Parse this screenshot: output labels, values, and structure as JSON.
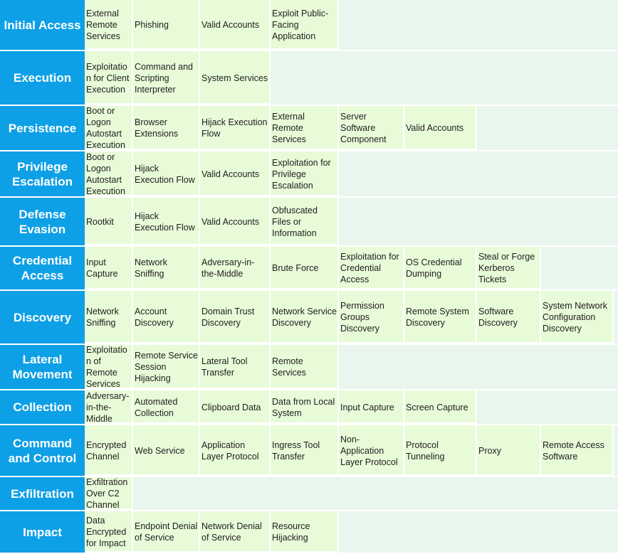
{
  "matrix": {
    "rows": [
      {
        "tactic": "Initial Access",
        "techniques": [
          "External Remote Services",
          "Phishing",
          "Valid Accounts",
          "Exploit Public-Facing Application"
        ]
      },
      {
        "tactic": "Execution",
        "techniques": [
          "Exploitation for Client Execution",
          "Command and Scripting Interpreter",
          "System Services"
        ]
      },
      {
        "tactic": "Persistence",
        "techniques": [
          "Boot or Logon Autostart Execution",
          "Browser Extensions",
          "Hijack Execution Flow",
          "External Remote Services",
          "Server Software Component",
          "Valid Accounts"
        ]
      },
      {
        "tactic": "Privilege Escalation",
        "techniques": [
          "Boot or Logon Autostart Execution",
          "Hijack Execution Flow",
          "Valid Accounts",
          "Exploitation for Privilege Escalation"
        ]
      },
      {
        "tactic": "Defense Evasion",
        "techniques": [
          "Rootkit",
          "Hijack Execution Flow",
          "Valid Accounts",
          "Obfuscated Files or Information"
        ]
      },
      {
        "tactic": "Credential Access",
        "techniques": [
          "Input Capture",
          "Network Sniffing",
          "Adversary-in-the-Middle",
          "Brute Force",
          "Exploitation for Credential Access",
          "OS Credential Dumping",
          "Steal or Forge Kerberos Tickets"
        ]
      },
      {
        "tactic": "Discovery",
        "techniques": [
          "Network Sniffing",
          "Account Discovery",
          "Domain Trust Discovery",
          "Network Service Discovery",
          "Permission Groups Discovery",
          "Remote System Discovery",
          "Software Discovery",
          "System Network Configuration Discovery"
        ]
      },
      {
        "tactic": "Lateral Movement",
        "techniques": [
          "Exploitation of Remote Services",
          "Remote Service Session Hijacking",
          "Lateral Tool Transfer",
          "Remote Services"
        ]
      },
      {
        "tactic": "Collection",
        "techniques": [
          "Adversary-in-the-Middle",
          "Automated Collection",
          "Clipboard Data",
          "Data from Local System",
          "Input Capture",
          "Screen Capture"
        ]
      },
      {
        "tactic": "Command and Control",
        "techniques": [
          "Encrypted Channel",
          "Web Service",
          "Application Layer Protocol",
          "Ingress Tool Transfer",
          "Non-Application Layer Protocol",
          "Protocol Tunneling",
          "Proxy",
          "Remote Access Software"
        ]
      },
      {
        "tactic": "Exfiltration",
        "techniques": [
          "Exfiltration Over C2 Channel"
        ]
      },
      {
        "tactic": "Impact",
        "techniques": [
          "Data Encrypted for Impact",
          "Endpoint Denial of Service",
          "Network Denial of Service",
          "Resource Hijacking"
        ]
      }
    ]
  }
}
